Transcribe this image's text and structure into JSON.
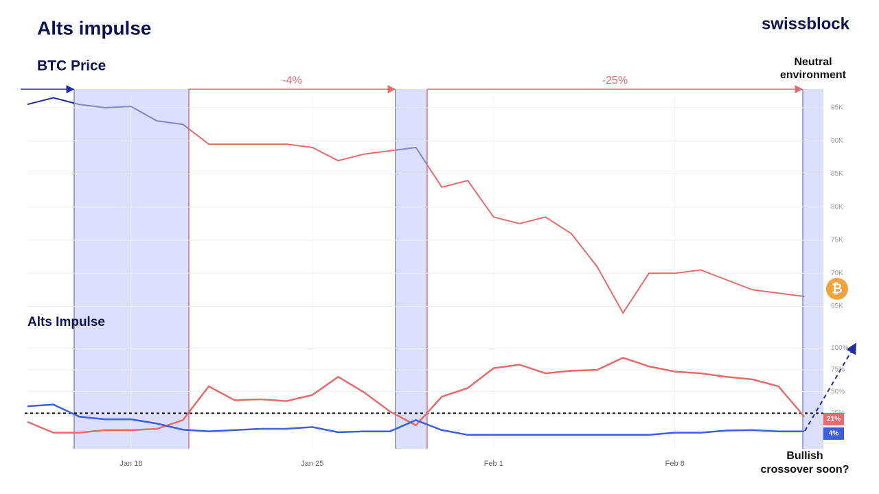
{
  "header": {
    "title": "Alts impulse",
    "brand": "swissblock"
  },
  "chart_data": [
    {
      "type": "line",
      "title": "BTC Price",
      "series": [
        {
          "values": [
            95500,
            96500,
            95500,
            95000,
            95200,
            93000,
            92500,
            89500,
            89500,
            89500,
            89500,
            89000,
            87000,
            88000,
            88500,
            89000,
            83000,
            84000,
            78500,
            77500,
            78500,
            76000,
            71000,
            64000,
            70000,
            70000,
            70500,
            69000,
            67500,
            67000,
            66500
          ]
        }
      ],
      "colors": {
        "start": "#1f2aa5",
        "bull": "#8088c0",
        "bear": "#e66c6b",
        "bull_band": "#d6dcfb",
        "icon": "#f2a33a"
      },
      "ylim": [
        60500,
        97800
      ],
      "yticks": [
        {
          "value": 65000,
          "label": "65K"
        },
        {
          "value": 70000,
          "label": "70K"
        },
        {
          "value": 75000,
          "label": "75K"
        },
        {
          "value": 80000,
          "label": "80K"
        },
        {
          "value": 85000,
          "label": "85K"
        },
        {
          "value": 90000,
          "label": "90K"
        },
        {
          "value": 95000,
          "label": "95K"
        }
      ],
      "grid": true,
      "annotations": [
        "-4%",
        "-25%"
      ],
      "note": [
        "Neutral",
        "environment"
      ],
      "icon": "₿"
    },
    {
      "type": "line",
      "title": "Alts Impulse",
      "categories": [
        null,
        null,
        null,
        null,
        "Jan 18",
        null,
        null,
        null,
        null,
        null,
        null,
        "Jan 25",
        null,
        null,
        null,
        null,
        null,
        null,
        "Feb 1",
        null,
        null,
        null,
        null,
        null,
        null,
        "Feb 8",
        null,
        null,
        null,
        null,
        null
      ],
      "series": [
        {
          "color": "#e66c6b",
          "values": [
            15,
            2.5,
            2.5,
            5.5,
            5.5,
            7,
            17,
            56,
            40,
            41,
            39,
            46,
            67,
            49,
            27,
            11,
            44,
            54,
            77,
            81,
            71,
            74,
            75,
            89,
            79,
            73,
            71,
            67,
            64,
            56,
            21
          ],
          "value_labels": [
            null,
            null,
            null,
            null,
            null,
            null,
            null,
            null,
            null,
            null,
            null,
            null,
            null,
            null,
            null,
            null,
            null,
            null,
            null,
            null,
            null,
            null,
            null,
            null,
            null,
            null,
            null,
            null,
            null,
            null,
            "21%"
          ]
        },
        {
          "color": "#3b5fe0",
          "values": [
            33,
            35,
            21,
            18,
            18,
            13,
            6,
            4,
            5.5,
            7,
            7,
            9,
            3,
            4,
            4,
            17,
            5.5,
            0,
            0,
            0,
            0,
            0,
            0,
            0,
            0,
            2.5,
            2.5,
            5,
            5.5,
            4,
            4
          ],
          "value_labels": [
            null,
            null,
            null,
            null,
            null,
            null,
            null,
            null,
            null,
            null,
            null,
            null,
            null,
            null,
            null,
            null,
            null,
            null,
            null,
            null,
            null,
            null,
            null,
            null,
            null,
            null,
            null,
            null,
            null,
            null,
            "4%"
          ]
        }
      ],
      "ylim": [
        -16,
        102
      ],
      "yticks": [
        {
          "value": 25,
          "label": "25%"
        },
        {
          "value": 50,
          "label": "50%"
        },
        {
          "value": 75,
          "label": "75%"
        },
        {
          "value": 100,
          "label": "100%"
        }
      ],
      "grid": true,
      "reference_line": 25,
      "note": [
        "Bullish",
        "crossover soon?"
      ]
    }
  ]
}
